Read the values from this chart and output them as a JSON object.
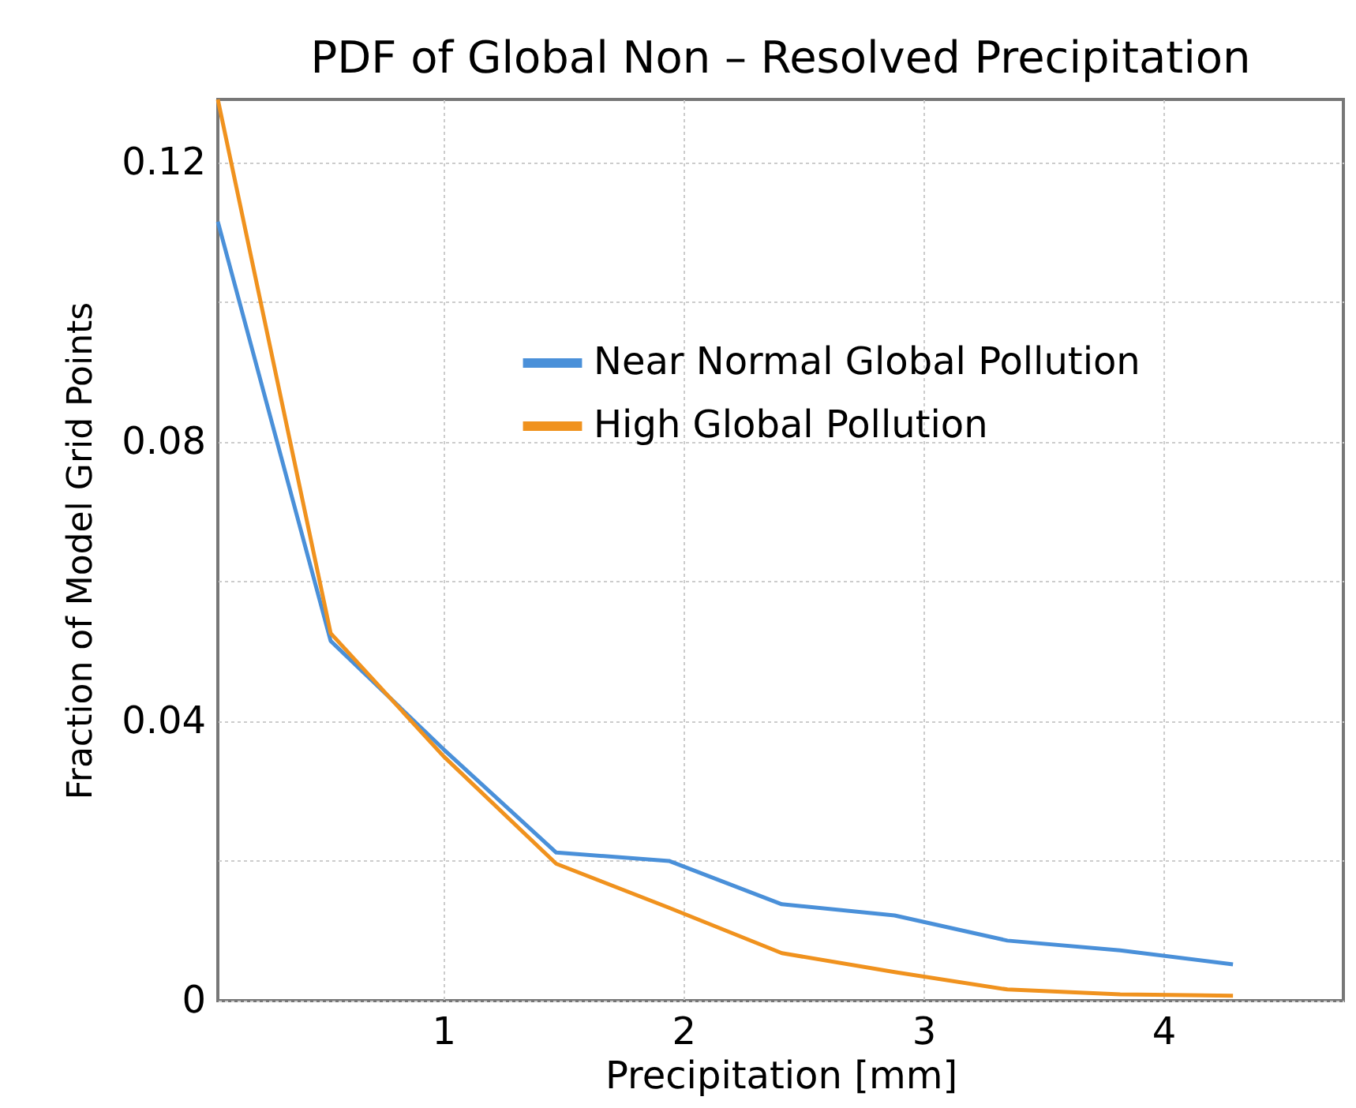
{
  "chart_data": {
    "type": "line",
    "title": "PDF of Global Non – Resolved Precipitation",
    "xlabel": "Precipitation [mm]",
    "ylabel": "Fraction of Model Grid Points",
    "x": [
      0.06,
      0.53,
      1.0,
      1.47,
      1.94,
      2.41,
      2.88,
      3.35,
      3.82,
      4.29
    ],
    "series": [
      {
        "name": "Near Normal Global Pollution",
        "color": "#4a90d9",
        "values": [
          0.1115,
          0.0515,
          0.036,
          0.0212,
          0.02,
          0.0138,
          0.0122,
          0.0086,
          0.0072,
          0.0052
        ]
      },
      {
        "name": "High Global Pollution",
        "color": "#f0921e",
        "values": [
          0.129,
          0.0526,
          0.035,
          0.0196,
          0.0133,
          0.0068,
          0.0041,
          0.0016,
          0.0009,
          0.0007
        ]
      }
    ],
    "xlim": [
      0.06,
      4.75
    ],
    "xticks": [
      1,
      2,
      3,
      4
    ],
    "ylim": [
      0,
      0.129
    ],
    "yticks": [
      0,
      {
        "value": 0.02,
        "label": null
      },
      0.04,
      {
        "value": 0.06,
        "label": null
      },
      0.08,
      {
        "value": 0.1,
        "label": null
      },
      0.12
    ],
    "grid": true,
    "legend": "top right",
    "marker": "none",
    "line_style": "solid"
  }
}
